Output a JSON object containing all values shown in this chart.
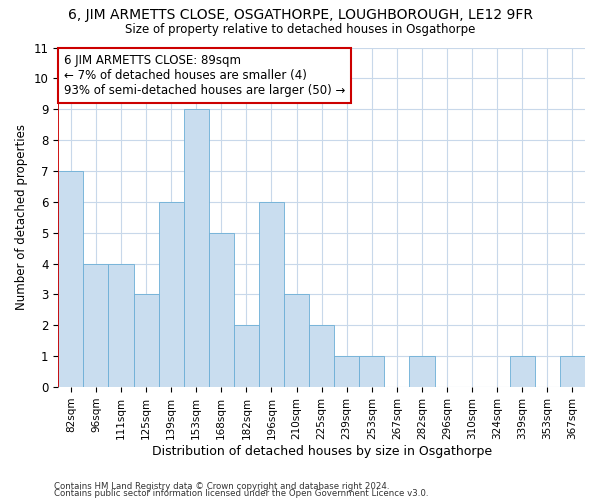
{
  "title": "6, JIM ARMETTS CLOSE, OSGATHORPE, LOUGHBOROUGH, LE12 9FR",
  "subtitle": "Size of property relative to detached houses in Osgathorpe",
  "xlabel": "Distribution of detached houses by size in Osgathorpe",
  "ylabel": "Number of detached properties",
  "categories": [
    "82sqm",
    "96sqm",
    "111sqm",
    "125sqm",
    "139sqm",
    "153sqm",
    "168sqm",
    "182sqm",
    "196sqm",
    "210sqm",
    "225sqm",
    "239sqm",
    "253sqm",
    "267sqm",
    "282sqm",
    "296sqm",
    "310sqm",
    "324sqm",
    "339sqm",
    "353sqm",
    "367sqm"
  ],
  "values": [
    7,
    4,
    4,
    3,
    6,
    9,
    5,
    2,
    6,
    3,
    2,
    1,
    1,
    0,
    1,
    0,
    0,
    0,
    1,
    0,
    1
  ],
  "bar_color": "#c9ddef",
  "bar_edge_color": "#6baed6",
  "ylim": [
    0,
    11
  ],
  "yticks": [
    0,
    1,
    2,
    3,
    4,
    5,
    6,
    7,
    8,
    9,
    10,
    11
  ],
  "annotation_line1": "6 JIM ARMETTS CLOSE: 89sqm",
  "annotation_line2": "← 7% of detached houses are smaller (4)",
  "annotation_line3": "93% of semi-detached houses are larger (50) →",
  "annotation_box_color": "#ffffff",
  "annotation_box_edge": "#cc0000",
  "red_line_x": -0.5,
  "footer_line1": "Contains HM Land Registry data © Crown copyright and database right 2024.",
  "footer_line2": "Contains public sector information licensed under the Open Government Licence v3.0.",
  "background_color": "#ffffff",
  "grid_color": "#c8d8ea"
}
